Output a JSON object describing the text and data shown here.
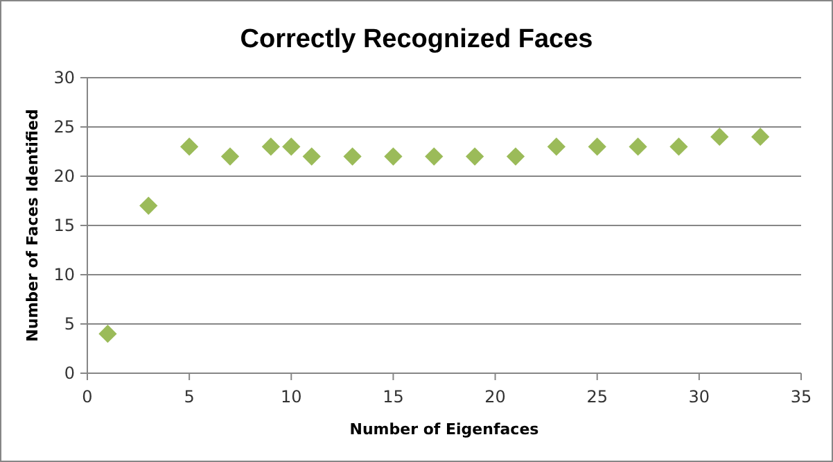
{
  "chart_data": {
    "type": "scatter",
    "title": "Correctly Recognized Faces",
    "xlabel": "Number of Eigenfaces",
    "ylabel": "Number of Faces Identified",
    "x": [
      1,
      3,
      5,
      7,
      9,
      10,
      11,
      13,
      15,
      17,
      19,
      21,
      23,
      25,
      27,
      29,
      31,
      33
    ],
    "series": [
      {
        "color": "#9bbb59",
        "values": [
          4,
          17,
          23,
          22,
          23,
          23,
          22,
          22,
          22,
          22,
          22,
          22,
          23,
          23,
          23,
          23,
          24,
          24
        ]
      }
    ],
    "xlim": [
      0,
      35
    ],
    "xticks": [
      0,
      5,
      10,
      15,
      20,
      25,
      30,
      35
    ],
    "ylim": [
      0,
      30
    ],
    "yticks": [
      0,
      5,
      10,
      15,
      20,
      25,
      30
    ],
    "grid": "y",
    "marker": "diamond"
  }
}
